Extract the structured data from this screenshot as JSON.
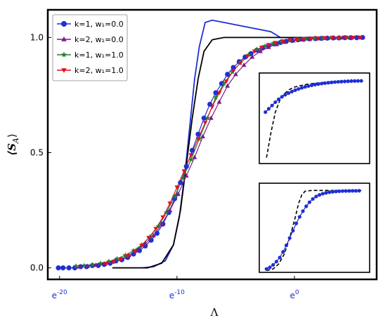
{
  "chart_data": {
    "type": "line",
    "xlabel": "Λ",
    "ylabel": "⟨S_A⟩",
    "x_scale": "log",
    "x_ticks": [
      {
        "exp": -20,
        "label": "e^-20"
      },
      {
        "exp": -10,
        "label": "e^-10"
      },
      {
        "exp": 0,
        "label": "e^0"
      }
    ],
    "y_ticks": [
      0.0,
      0.5,
      1.0
    ],
    "y_tick_labels": [
      "0.0",
      "0.5",
      "1.0"
    ],
    "xlim_exp": [
      -21,
      7
    ],
    "ylim": [
      -0.05,
      1.12
    ],
    "legend_position": "top-left",
    "series": [
      {
        "name": "k=1, w₁=0.0",
        "color": "#1f2fd6",
        "marker": "circle",
        "points": [
          [
            -20.1,
            0.0
          ],
          [
            -19.7,
            0.0
          ],
          [
            -19.2,
            0.0
          ],
          [
            -18.7,
            0.0
          ],
          [
            -18.2,
            0.005
          ],
          [
            -17.7,
            0.005
          ],
          [
            -17.2,
            0.01
          ],
          [
            -16.7,
            0.01
          ],
          [
            -16.2,
            0.015
          ],
          [
            -15.7,
            0.02
          ],
          [
            -15.2,
            0.03
          ],
          [
            -14.7,
            0.035
          ],
          [
            -14.2,
            0.045
          ],
          [
            -13.7,
            0.06
          ],
          [
            -13.2,
            0.075
          ],
          [
            -12.7,
            0.095
          ],
          [
            -12.2,
            0.12
          ],
          [
            -11.7,
            0.15
          ],
          [
            -11.2,
            0.19
          ],
          [
            -10.7,
            0.24
          ],
          [
            -10.2,
            0.3
          ],
          [
            -9.7,
            0.37
          ],
          [
            -9.2,
            0.44
          ],
          [
            -8.7,
            0.51
          ],
          [
            -8.2,
            0.58
          ],
          [
            -7.7,
            0.65
          ],
          [
            -7.2,
            0.71
          ],
          [
            -6.7,
            0.76
          ],
          [
            -6.2,
            0.8
          ],
          [
            -5.7,
            0.84
          ],
          [
            -5.2,
            0.87
          ],
          [
            -4.7,
            0.895
          ],
          [
            -4.2,
            0.915
          ],
          [
            -3.7,
            0.93
          ],
          [
            -3.2,
            0.945
          ],
          [
            -2.7,
            0.955
          ],
          [
            -2.2,
            0.965
          ],
          [
            -1.7,
            0.972
          ],
          [
            -1.2,
            0.978
          ],
          [
            -0.7,
            0.983
          ],
          [
            -0.2,
            0.987
          ],
          [
            0.3,
            0.99
          ],
          [
            0.8,
            0.992
          ],
          [
            1.3,
            0.994
          ],
          [
            1.8,
            0.995
          ],
          [
            2.3,
            0.996
          ],
          [
            2.8,
            0.997
          ],
          [
            3.3,
            0.998
          ],
          [
            3.8,
            0.998
          ],
          [
            4.3,
            0.999
          ],
          [
            4.8,
            0.999
          ],
          [
            5.3,
            0.999
          ],
          [
            5.8,
            1.0
          ]
        ]
      },
      {
        "name": "k=2, w₁=0.0",
        "color": "#7b1a8a",
        "marker": "triangle-up",
        "points": [
          [
            -18.3,
            0.005
          ],
          [
            -17.6,
            0.008
          ],
          [
            -16.9,
            0.012
          ],
          [
            -16.2,
            0.018
          ],
          [
            -15.5,
            0.026
          ],
          [
            -14.8,
            0.038
          ],
          [
            -14.1,
            0.055
          ],
          [
            -13.4,
            0.075
          ],
          [
            -12.7,
            0.105
          ],
          [
            -12.0,
            0.14
          ],
          [
            -11.3,
            0.19
          ],
          [
            -10.6,
            0.25
          ],
          [
            -9.9,
            0.32
          ],
          [
            -9.2,
            0.4
          ],
          [
            -8.5,
            0.48
          ],
          [
            -7.8,
            0.57
          ],
          [
            -7.1,
            0.65
          ],
          [
            -6.4,
            0.72
          ],
          [
            -5.7,
            0.79
          ],
          [
            -5.0,
            0.84
          ],
          [
            -4.3,
            0.88
          ],
          [
            -3.6,
            0.915
          ],
          [
            -2.9,
            0.94
          ],
          [
            -2.2,
            0.958
          ],
          [
            -1.5,
            0.97
          ],
          [
            -0.8,
            0.98
          ],
          [
            -0.1,
            0.986
          ],
          [
            0.6,
            0.99
          ],
          [
            1.3,
            0.993
          ],
          [
            2.0,
            0.995
          ],
          [
            2.7,
            0.997
          ],
          [
            3.4,
            0.998
          ],
          [
            4.1,
            0.999
          ],
          [
            4.8,
            0.999
          ],
          [
            5.5,
            1.0
          ]
        ]
      },
      {
        "name": "k=1, w₁=1.0",
        "color": "#2a7d2a",
        "marker": "star",
        "points": [
          [
            -18.6,
            0.008
          ],
          [
            -17.9,
            0.01
          ],
          [
            -17.2,
            0.014
          ],
          [
            -16.5,
            0.02
          ],
          [
            -15.8,
            0.028
          ],
          [
            -15.1,
            0.04
          ],
          [
            -14.4,
            0.055
          ],
          [
            -13.7,
            0.075
          ],
          [
            -13.0,
            0.1
          ],
          [
            -12.3,
            0.135
          ],
          [
            -11.6,
            0.18
          ],
          [
            -10.9,
            0.24
          ],
          [
            -10.2,
            0.31
          ],
          [
            -9.5,
            0.39
          ],
          [
            -8.8,
            0.47
          ],
          [
            -8.1,
            0.56
          ],
          [
            -7.4,
            0.65
          ],
          [
            -6.7,
            0.74
          ],
          [
            -6.0,
            0.8
          ],
          [
            -5.3,
            0.85
          ],
          [
            -4.6,
            0.89
          ],
          [
            -3.9,
            0.925
          ],
          [
            -3.2,
            0.948
          ],
          [
            -2.5,
            0.963
          ],
          [
            -1.8,
            0.975
          ],
          [
            -1.1,
            0.983
          ],
          [
            -0.4,
            0.988
          ],
          [
            0.3,
            0.992
          ],
          [
            1.0,
            0.994
          ],
          [
            1.7,
            0.996
          ],
          [
            2.4,
            0.997
          ],
          [
            3.1,
            0.998
          ],
          [
            3.8,
            0.999
          ],
          [
            4.5,
            0.999
          ]
        ]
      },
      {
        "name": "k=2, w₁=1.0",
        "color": "#e0141e",
        "marker": "triangle-down",
        "points": [
          [
            -16.0,
            0.018
          ],
          [
            -15.4,
            0.026
          ],
          [
            -14.8,
            0.037
          ],
          [
            -14.2,
            0.052
          ],
          [
            -13.6,
            0.072
          ],
          [
            -13.0,
            0.097
          ],
          [
            -12.4,
            0.13
          ],
          [
            -11.8,
            0.17
          ],
          [
            -11.2,
            0.22
          ],
          [
            -10.6,
            0.28
          ],
          [
            -10.0,
            0.35
          ],
          [
            -9.4,
            0.42
          ],
          [
            -8.8,
            0.49
          ],
          [
            -8.2,
            0.56
          ],
          [
            -7.6,
            0.63
          ],
          [
            -7.0,
            0.7
          ],
          [
            -6.4,
            0.76
          ],
          [
            -5.8,
            0.81
          ],
          [
            -5.2,
            0.855
          ],
          [
            -4.6,
            0.89
          ],
          [
            -4.0,
            0.918
          ],
          [
            -3.4,
            0.94
          ],
          [
            -2.8,
            0.956
          ],
          [
            -2.2,
            0.968
          ],
          [
            -1.6,
            0.977
          ],
          [
            -1.0,
            0.984
          ],
          [
            -0.4,
            0.989
          ],
          [
            0.2,
            0.992
          ],
          [
            0.8,
            0.994
          ],
          [
            1.4,
            0.996
          ],
          [
            2.0,
            0.997
          ],
          [
            2.6,
            0.998
          ],
          [
            3.2,
            0.998
          ],
          [
            3.8,
            0.999
          ],
          [
            4.4,
            0.999
          ],
          [
            5.0,
            1.0
          ],
          [
            5.6,
            1.0
          ]
        ]
      }
    ],
    "reference_curves": [
      {
        "color": "#1f2fd6",
        "style": "solid",
        "points": [
          [
            -15.5,
            0.0
          ],
          [
            -13.0,
            0.0
          ],
          [
            -12.0,
            0.005
          ],
          [
            -11.0,
            0.03
          ],
          [
            -10.3,
            0.1
          ],
          [
            -9.8,
            0.22
          ],
          [
            -9.3,
            0.42
          ],
          [
            -8.9,
            0.62
          ],
          [
            -8.5,
            0.82
          ],
          [
            -8.1,
            0.96
          ],
          [
            -7.6,
            1.065
          ],
          [
            -7.0,
            1.075
          ],
          [
            -6.0,
            1.065
          ],
          [
            -4.0,
            1.045
          ],
          [
            -2.0,
            1.025
          ],
          [
            -1.2,
            1.0
          ],
          [
            6.0,
            1.0
          ]
        ]
      },
      {
        "color": "#000000",
        "style": "solid",
        "points": [
          [
            -15.5,
            0.0
          ],
          [
            -12.5,
            0.0
          ],
          [
            -11.3,
            0.02
          ],
          [
            -10.3,
            0.1
          ],
          [
            -9.7,
            0.25
          ],
          [
            -9.2,
            0.45
          ],
          [
            -8.7,
            0.65
          ],
          [
            -8.2,
            0.82
          ],
          [
            -7.7,
            0.94
          ],
          [
            -7.0,
            0.99
          ],
          [
            -6.0,
            1.0
          ],
          [
            6.0,
            1.0
          ]
        ]
      }
    ],
    "insets": [
      {
        "position": "right-middle",
        "xlim_exp": [
          -3.0,
          6.5
        ],
        "ylim": [
          0.0,
          1.0
        ],
        "data_series": {
          "color": "#1f2fd6",
          "points": [
            [
              -2.7,
              0.6
            ],
            [
              -2.4,
              0.64
            ],
            [
              -2.1,
              0.68
            ],
            [
              -1.8,
              0.72
            ],
            [
              -1.5,
              0.755
            ],
            [
              -1.2,
              0.785
            ],
            [
              -0.9,
              0.81
            ],
            [
              -0.6,
              0.83
            ],
            [
              -0.3,
              0.848
            ],
            [
              0.0,
              0.865
            ],
            [
              0.3,
              0.88
            ],
            [
              0.6,
              0.893
            ],
            [
              0.9,
              0.905
            ],
            [
              1.2,
              0.915
            ],
            [
              1.5,
              0.924
            ],
            [
              1.8,
              0.932
            ],
            [
              2.1,
              0.939
            ],
            [
              2.4,
              0.945
            ],
            [
              2.7,
              0.95
            ],
            [
              3.0,
              0.955
            ],
            [
              3.3,
              0.959
            ],
            [
              3.6,
              0.963
            ],
            [
              3.9,
              0.966
            ],
            [
              4.2,
              0.969
            ],
            [
              4.5,
              0.971
            ],
            [
              4.8,
              0.973
            ],
            [
              5.1,
              0.975
            ],
            [
              5.4,
              0.976
            ],
            [
              5.7,
              0.977
            ],
            [
              6.0,
              0.978
            ]
          ]
        },
        "dashed_curve": {
          "color": "#000000",
          "points": [
            [
              -2.6,
              0.05
            ],
            [
              -2.2,
              0.35
            ],
            [
              -1.8,
              0.6
            ],
            [
              -1.4,
              0.74
            ],
            [
              -1.0,
              0.82
            ],
            [
              -0.5,
              0.875
            ],
            [
              0.0,
              0.905
            ],
            [
              1.0,
              0.935
            ],
            [
              2.0,
              0.952
            ],
            [
              3.0,
              0.963
            ],
            [
              4.0,
              0.97
            ],
            [
              5.0,
              0.975
            ],
            [
              6.0,
              0.978
            ]
          ]
        }
      },
      {
        "position": "right-bottom",
        "xlim_exp": [
          -3.0,
          6.5
        ],
        "ylim": [
          0.0,
          1.0
        ],
        "data_series": {
          "color": "#1f2fd6",
          "points": [
            [
              -2.6,
              0.02
            ],
            [
              -2.3,
              0.04
            ],
            [
              -2.0,
              0.07
            ],
            [
              -1.7,
              0.11
            ],
            [
              -1.4,
              0.16
            ],
            [
              -1.1,
              0.23
            ],
            [
              -0.8,
              0.31
            ],
            [
              -0.5,
              0.4
            ],
            [
              -0.2,
              0.49
            ],
            [
              0.1,
              0.58
            ],
            [
              0.4,
              0.66
            ],
            [
              0.7,
              0.73
            ],
            [
              1.0,
              0.79
            ],
            [
              1.3,
              0.84
            ],
            [
              1.6,
              0.88
            ],
            [
              1.9,
              0.91
            ],
            [
              2.2,
              0.93
            ],
            [
              2.5,
              0.945
            ],
            [
              2.8,
              0.955
            ],
            [
              3.1,
              0.963
            ],
            [
              3.4,
              0.968
            ],
            [
              3.7,
              0.972
            ],
            [
              4.0,
              0.975
            ],
            [
              4.3,
              0.977
            ],
            [
              4.6,
              0.978
            ],
            [
              4.9,
              0.979
            ],
            [
              5.2,
              0.98
            ],
            [
              5.5,
              0.98
            ],
            [
              5.8,
              0.981
            ]
          ]
        },
        "dashed_curve": {
          "color": "#000000",
          "points": [
            [
              -2.6,
              0.0
            ],
            [
              -2.0,
              0.02
            ],
            [
              -1.5,
              0.08
            ],
            [
              -1.0,
              0.2
            ],
            [
              -0.5,
              0.4
            ],
            [
              0.0,
              0.65
            ],
            [
              0.3,
              0.82
            ],
            [
              0.6,
              0.93
            ],
            [
              0.9,
              0.975
            ],
            [
              1.5,
              0.985
            ],
            [
              3.0,
              0.985
            ],
            [
              6.0,
              0.985
            ]
          ]
        }
      }
    ]
  }
}
